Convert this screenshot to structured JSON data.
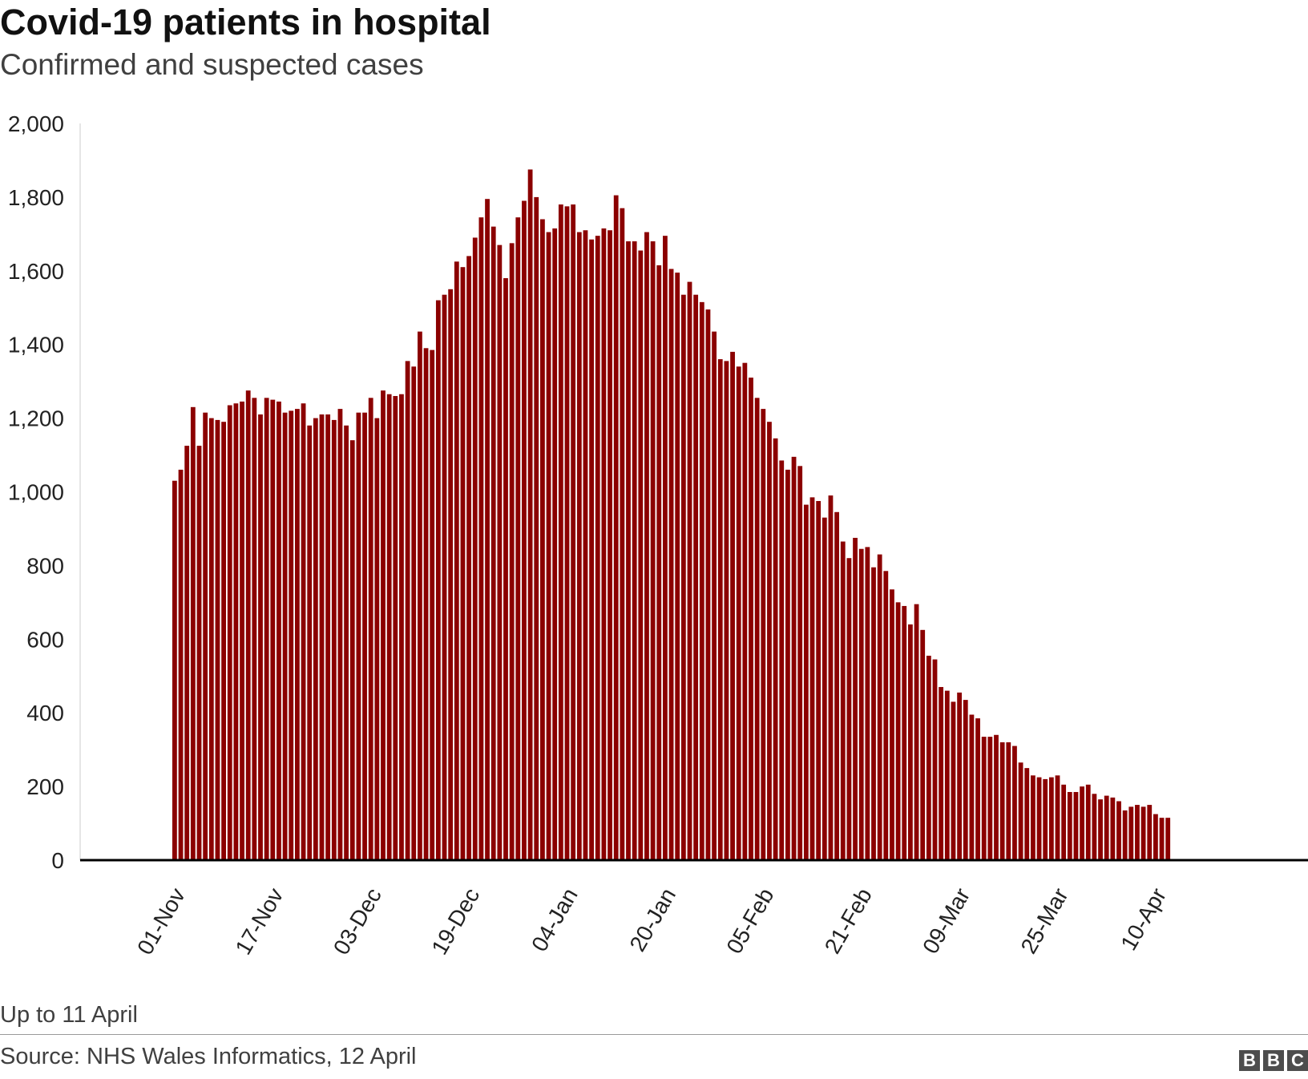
{
  "chart_data": {
    "type": "bar",
    "title": "Covid-19 patients in hospital",
    "subtitle": "Confirmed and suspected cases",
    "xlabel": "",
    "ylabel": "",
    "ylim": [
      0,
      2000
    ],
    "yticks": [
      0,
      200,
      400,
      600,
      800,
      1000,
      1200,
      1400,
      1600,
      1800,
      2000
    ],
    "ytick_labels": [
      "0",
      "200",
      "400",
      "600",
      "800",
      "1,000",
      "1,200",
      "1,400",
      "1,600",
      "1,800",
      "2,000"
    ],
    "x_start": "01-Nov",
    "x_end": "11-Apr",
    "xtick_labels": [
      "01-Nov",
      "17-Nov",
      "03-Dec",
      "19-Dec",
      "04-Jan",
      "20-Jan",
      "05-Feb",
      "21-Feb",
      "09-Mar",
      "25-Mar",
      "10-Apr"
    ],
    "grid": false,
    "bar_color": "#8b0000",
    "values": [
      1030,
      1060,
      1125,
      1230,
      1125,
      1215,
      1200,
      1195,
      1190,
      1235,
      1240,
      1245,
      1275,
      1255,
      1210,
      1255,
      1250,
      1245,
      1215,
      1220,
      1225,
      1240,
      1180,
      1200,
      1210,
      1210,
      1195,
      1225,
      1180,
      1140,
      1215,
      1215,
      1255,
      1200,
      1275,
      1265,
      1260,
      1265,
      1355,
      1340,
      1435,
      1390,
      1385,
      1520,
      1535,
      1550,
      1625,
      1610,
      1640,
      1690,
      1745,
      1795,
      1720,
      1670,
      1580,
      1675,
      1745,
      1790,
      1875,
      1800,
      1740,
      1705,
      1715,
      1780,
      1775,
      1780,
      1705,
      1710,
      1685,
      1695,
      1715,
      1710,
      1805,
      1770,
      1680,
      1680,
      1655,
      1705,
      1680,
      1615,
      1695,
      1605,
      1595,
      1535,
      1570,
      1535,
      1515,
      1495,
      1435,
      1360,
      1355,
      1380,
      1340,
      1350,
      1310,
      1255,
      1225,
      1190,
      1145,
      1085,
      1060,
      1095,
      1070,
      965,
      985,
      975,
      930,
      990,
      945,
      865,
      820,
      875,
      845,
      850,
      795,
      830,
      785,
      735,
      700,
      690,
      640,
      695,
      625,
      555,
      545,
      470,
      460,
      430,
      455,
      435,
      395,
      385,
      335,
      335,
      340,
      320,
      320,
      310,
      265,
      250,
      230,
      225,
      220,
      225,
      230,
      205,
      185,
      185,
      200,
      205,
      180,
      165,
      175,
      170,
      160,
      135,
      145,
      150,
      145,
      150,
      125,
      115,
      115
    ]
  },
  "footer": {
    "note": "Up to 11 April",
    "source": "Source: NHS Wales Informatics, 12 April",
    "logo_letters": [
      "B",
      "B",
      "C"
    ]
  }
}
